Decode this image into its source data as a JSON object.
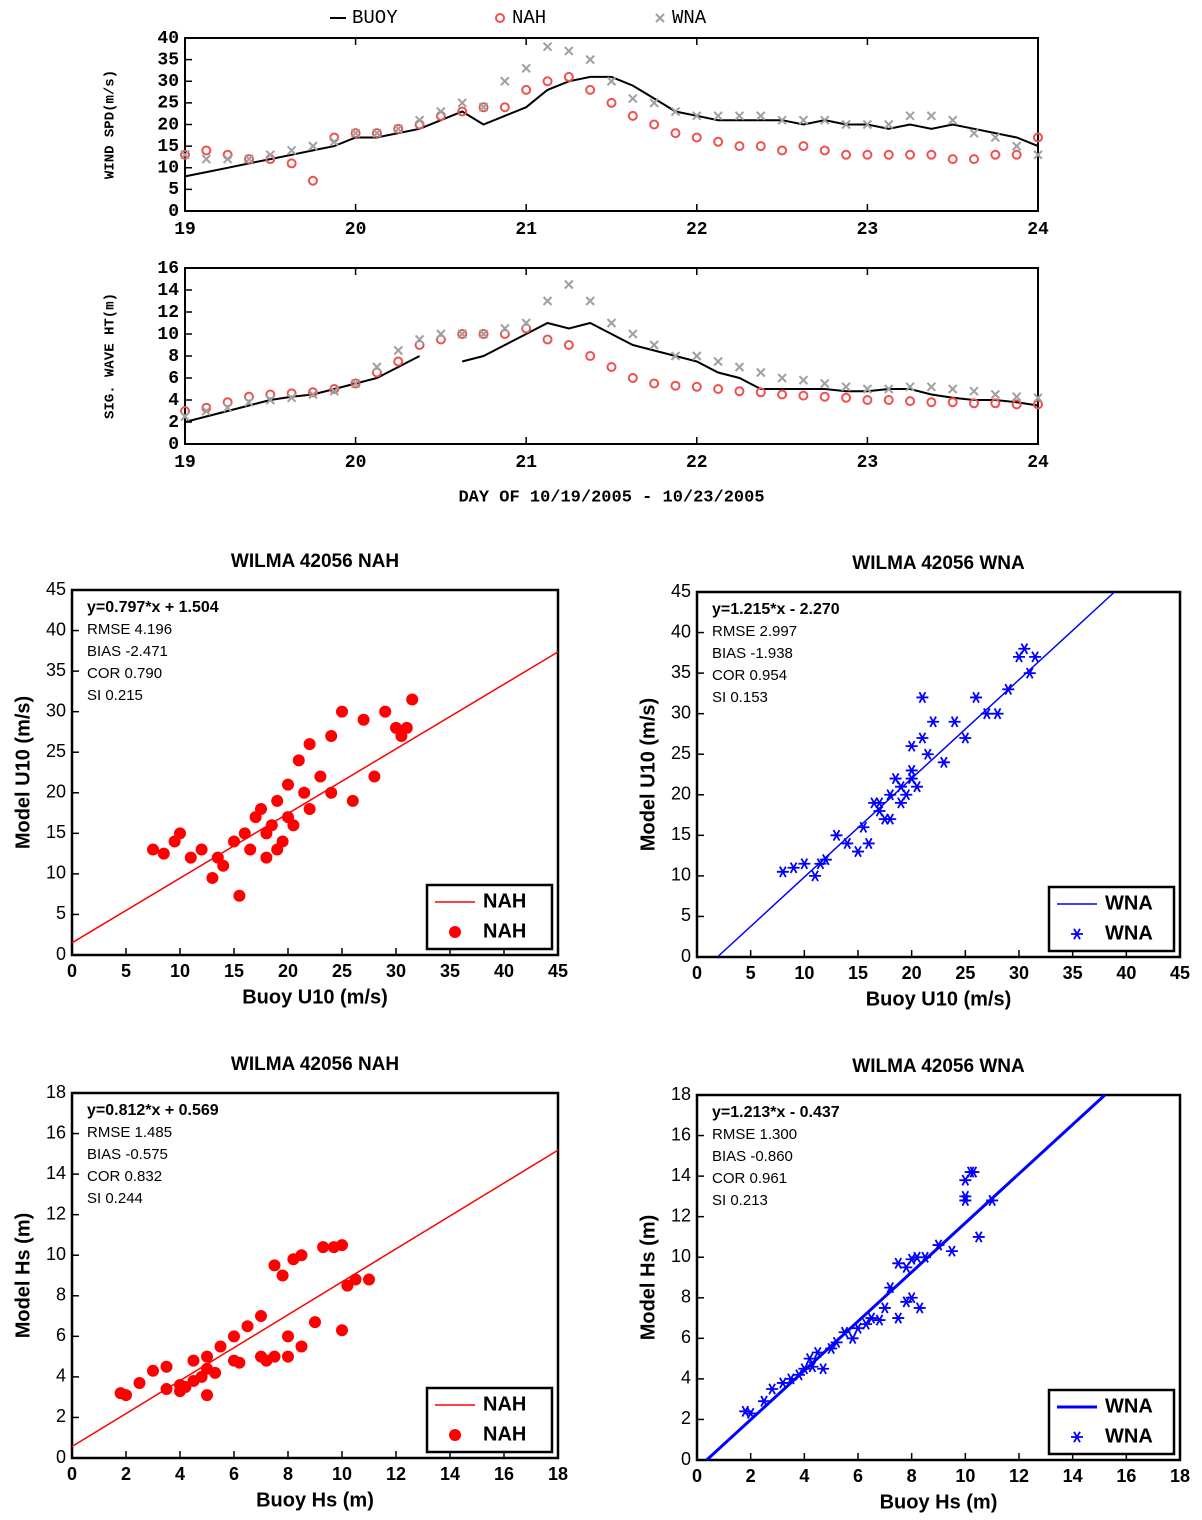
{
  "chart_data": [
    {
      "type": "line",
      "legend": "top",
      "x": [
        19,
        19.125,
        19.25,
        19.375,
        19.5,
        19.625,
        19.75,
        19.875,
        20,
        20.125,
        20.25,
        20.375,
        20.5,
        20.625,
        20.75,
        20.875,
        21,
        21.125,
        21.25,
        21.375,
        21.5,
        21.625,
        21.75,
        21.875,
        22,
        22.125,
        22.25,
        22.375,
        22.5,
        22.625,
        22.75,
        22.875,
        23,
        23.125,
        23.25,
        23.375,
        23.5,
        23.625,
        23.75,
        23.875,
        24
      ],
      "xlim": [
        19,
        24
      ],
      "xticks": [
        19,
        20,
        21,
        22,
        23,
        24
      ],
      "ylabel": "WIND SPD(m/s)",
      "ylim": [
        0,
        40
      ],
      "yticks": [
        0,
        5,
        10,
        15,
        20,
        25,
        30,
        35,
        40
      ],
      "series": [
        {
          "name": "BUOY",
          "color": "#000000",
          "line": true,
          "marker": "none",
          "values": [
            8,
            9,
            10,
            11,
            12,
            13,
            14,
            15,
            17,
            17,
            18,
            19,
            21,
            23,
            20,
            22,
            24,
            28,
            30,
            31,
            31,
            29,
            26,
            23,
            22,
            21,
            21,
            21,
            21,
            20,
            21,
            20,
            20,
            19,
            20,
            19,
            20,
            19,
            18,
            17,
            15
          ]
        },
        {
          "name": "NAH",
          "color": "#f05050",
          "line": false,
          "marker": "circle-open",
          "values": [
            13,
            14,
            13,
            12,
            12,
            11,
            7,
            17,
            18,
            18,
            19,
            20,
            22,
            23,
            24,
            24,
            28,
            30,
            31,
            28,
            25,
            22,
            20,
            18,
            17,
            16,
            15,
            15,
            14,
            15,
            14,
            13,
            13,
            13,
            13,
            13,
            12,
            12,
            13,
            13,
            17
          ]
        },
        {
          "name": "WNA",
          "color": "#a0a0a0",
          "line": false,
          "marker": "x",
          "values": [
            13,
            12,
            12,
            12,
            13,
            14,
            15,
            16,
            18,
            18,
            19,
            21,
            23,
            25,
            24,
            30,
            33,
            38,
            37,
            35,
            30,
            26,
            25,
            23,
            22,
            22,
            22,
            22,
            21,
            21,
            21,
            20,
            20,
            20,
            22,
            22,
            21,
            18,
            17,
            15,
            13
          ]
        }
      ]
    },
    {
      "type": "line",
      "legend": "none",
      "x": [
        19,
        19.125,
        19.25,
        19.375,
        19.5,
        19.625,
        19.75,
        19.875,
        20,
        20.125,
        20.25,
        20.375,
        20.5,
        20.625,
        20.75,
        20.875,
        21,
        21.125,
        21.25,
        21.375,
        21.5,
        21.625,
        21.75,
        21.875,
        22,
        22.125,
        22.25,
        22.375,
        22.5,
        22.625,
        22.75,
        22.875,
        23,
        23.125,
        23.25,
        23.375,
        23.5,
        23.625,
        23.75,
        23.875,
        24
      ],
      "xlim": [
        19,
        24
      ],
      "xticks": [
        19,
        20,
        21,
        22,
        23,
        24
      ],
      "xlabel": "DAY OF 10/19/2005 - 10/23/2005",
      "ylabel": "SIG. WAVE HT(m)",
      "ylim": [
        0,
        16
      ],
      "yticks": [
        0,
        2,
        4,
        6,
        8,
        10,
        12,
        14,
        16
      ],
      "series": [
        {
          "color": "#000000",
          "line": true,
          "marker": "none",
          "values": [
            2,
            2.5,
            3,
            3.5,
            4,
            4.3,
            4.5,
            5,
            5.5,
            6,
            7,
            8,
            null,
            7.5,
            8,
            9,
            10,
            11,
            10.5,
            11,
            10,
            9,
            8.5,
            8,
            7.5,
            6.5,
            6,
            5,
            5,
            5,
            5,
            4.8,
            4.8,
            5,
            5,
            4.5,
            4.2,
            4,
            4,
            3.8,
            3.5
          ]
        },
        {
          "color": "#f05050",
          "line": false,
          "marker": "circle-open",
          "values": [
            3,
            3.3,
            3.8,
            4.3,
            4.5,
            4.6,
            4.7,
            5,
            5.5,
            6.5,
            7.5,
            9,
            9.5,
            10,
            10,
            10,
            10.5,
            9.5,
            9,
            8,
            7,
            6,
            5.5,
            5.3,
            5.2,
            5,
            4.8,
            4.7,
            4.5,
            4.4,
            4.3,
            4.2,
            4,
            4,
            3.9,
            3.8,
            3.8,
            3.7,
            3.7,
            3.6,
            3.6
          ]
        },
        {
          "color": "#a0a0a0",
          "line": false,
          "marker": "x",
          "values": [
            2.5,
            3,
            3.3,
            3.8,
            4,
            4.2,
            4.5,
            4.8,
            5.5,
            7,
            8.5,
            9.5,
            10,
            10,
            10,
            10.5,
            11,
            13,
            14.5,
            13,
            11,
            10,
            9,
            8,
            8,
            7.5,
            7,
            6.5,
            6,
            5.8,
            5.5,
            5.2,
            5,
            5,
            5.2,
            5.2,
            5,
            4.8,
            4.5,
            4.3,
            4.2
          ]
        }
      ]
    },
    {
      "type": "scatter",
      "title": "WILMA 42056 NAH",
      "xlabel": "Buoy U10 (m/s)",
      "ylabel": "Model U10 (m/s)",
      "xlim": [
        0,
        45
      ],
      "xticks": [
        0,
        5,
        10,
        15,
        20,
        25,
        30,
        35,
        40,
        45
      ],
      "ylim": [
        0,
        45
      ],
      "yticks": [
        0,
        5,
        10,
        15,
        20,
        25,
        30,
        35,
        40,
        45
      ],
      "annotations": [
        "y=0.797*x + 1.504",
        "RMSE 4.196",
        "BIAS -2.471",
        "COR 0.790",
        "SI 0.215"
      ],
      "legend": "lower right",
      "series": [
        {
          "name": "NAH",
          "color": "#ff0000",
          "line": true,
          "marker": "none",
          "line_width": 1.5,
          "x": [
            0,
            45
          ],
          "values": [
            1.504,
            37.369
          ]
        },
        {
          "name": "NAH",
          "color": "#ff0000",
          "line": false,
          "marker": "circle",
          "x": [
            7.5,
            8.5,
            9.5,
            10,
            11,
            12,
            13,
            13.5,
            14,
            15,
            15.5,
            16,
            16.5,
            17,
            17.5,
            18,
            18.5,
            19,
            19.5,
            20,
            20.5,
            21,
            21.5,
            22,
            23,
            24,
            25,
            26,
            27,
            28,
            29,
            30,
            30.5,
            31,
            31.5,
            18,
            19,
            20,
            22,
            24
          ],
          "values": [
            13,
            12.5,
            14,
            15,
            12,
            13,
            9.5,
            12,
            11,
            14,
            7.3,
            15,
            13,
            17,
            18,
            12,
            16,
            19,
            14,
            21,
            16,
            24,
            20,
            26,
            22,
            27,
            30,
            19,
            29,
            22,
            30,
            28,
            27,
            28,
            31.5,
            15,
            13,
            17,
            18,
            20
          ]
        }
      ]
    },
    {
      "type": "scatter",
      "title": "WILMA 42056 WNA",
      "xlabel": "Buoy U10 (m/s)",
      "ylabel": "Model U10 (m/s)",
      "xlim": [
        0,
        45
      ],
      "xticks": [
        0,
        5,
        10,
        15,
        20,
        25,
        30,
        35,
        40,
        45
      ],
      "ylim": [
        0,
        45
      ],
      "yticks": [
        0,
        5,
        10,
        15,
        20,
        25,
        30,
        35,
        40,
        45
      ],
      "annotations": [
        "y=1.215*x - 2.270",
        "RMSE 2.997",
        "BIAS -1.938",
        "COR 0.954",
        "SI 0.153"
      ],
      "legend": "lower right",
      "series": [
        {
          "name": "WNA",
          "color": "#0000ff",
          "line": true,
          "marker": "none",
          "line_width": 1.5,
          "x": [
            1.9,
            38.9
          ],
          "values": [
            0,
            45
          ]
        },
        {
          "name": "WNA",
          "color": "#0000ff",
          "line": false,
          "marker": "star",
          "x": [
            8,
            9,
            10,
            11,
            11.5,
            12,
            13,
            14,
            15,
            15.5,
            16,
            16.5,
            17,
            17.5,
            18,
            18.5,
            19,
            19.5,
            20,
            20.5,
            21,
            21.5,
            22,
            23,
            24,
            25,
            26,
            27,
            28,
            29,
            30,
            30.5,
            31,
            31.5,
            19,
            20,
            21,
            17,
            18,
            20
          ],
          "values": [
            10.5,
            11,
            11.5,
            10,
            11.5,
            12,
            15,
            14,
            13,
            16,
            14,
            19,
            18,
            17,
            20,
            22,
            21,
            20,
            23,
            21,
            32,
            25,
            29,
            24,
            29,
            27,
            32,
            30,
            30,
            33,
            37,
            38,
            35,
            37,
            19,
            22,
            27,
            19,
            17,
            26
          ]
        }
      ]
    },
    {
      "type": "scatter",
      "title": "WILMA 42056 NAH",
      "xlabel": "Buoy Hs (m)",
      "ylabel": "Model Hs (m)",
      "xlim": [
        0,
        18
      ],
      "xticks": [
        0,
        2,
        4,
        6,
        8,
        10,
        12,
        14,
        16,
        18
      ],
      "ylim": [
        0,
        18
      ],
      "yticks": [
        0,
        2,
        4,
        6,
        8,
        10,
        12,
        14,
        16,
        18
      ],
      "annotations": [
        "y=0.812*x + 0.569",
        "RMSE 1.485",
        "BIAS -0.575",
        "COR 0.832",
        "SI 0.244"
      ],
      "legend": "lower right",
      "series": [
        {
          "name": "NAH",
          "color": "#ff0000",
          "line": true,
          "marker": "none",
          "line_width": 1.5,
          "x": [
            0,
            18
          ],
          "values": [
            0.569,
            15.185
          ]
        },
        {
          "name": "NAH",
          "color": "#ff0000",
          "line": false,
          "marker": "circle",
          "x": [
            1.8,
            2,
            2.5,
            3,
            3.5,
            4,
            4.2,
            4.5,
            4.8,
            5,
            5.3,
            5.5,
            6,
            6.2,
            6.5,
            7,
            7.2,
            7.5,
            7.8,
            8,
            8.2,
            8.5,
            9,
            9.3,
            9.7,
            10,
            10.2,
            10.5,
            11,
            4,
            5,
            6,
            7,
            7.5,
            8,
            8.5,
            3.5,
            4.5,
            5,
            10
          ],
          "values": [
            3.2,
            3.1,
            3.7,
            4.3,
            4.5,
            3.3,
            3.5,
            4.8,
            4,
            5,
            4.2,
            5.5,
            6,
            4.7,
            6.5,
            7,
            4.8,
            9.5,
            9,
            5,
            9.8,
            10,
            6.7,
            10.4,
            10.4,
            10.5,
            8.5,
            8.8,
            8.8,
            3.6,
            3.1,
            4.8,
            5,
            5,
            6,
            5.5,
            3.4,
            3.8,
            4.4,
            6.3
          ]
        }
      ]
    },
    {
      "type": "scatter",
      "title": "WILMA 42056 WNA",
      "xlabel": "Buoy Hs (m)",
      "ylabel": "Model Hs (m)",
      "xlim": [
        0,
        18
      ],
      "xticks": [
        0,
        2,
        4,
        6,
        8,
        10,
        12,
        14,
        16,
        18
      ],
      "ylim": [
        0,
        18
      ],
      "yticks": [
        0,
        2,
        4,
        6,
        8,
        10,
        12,
        14,
        16,
        18
      ],
      "annotations": [
        "y=1.213*x - 0.437",
        "RMSE 1.300",
        "BIAS -0.860",
        "COR 0.961",
        "SI 0.213"
      ],
      "legend": "lower right",
      "series": [
        {
          "name": "WNA",
          "color": "#0000ff",
          "line": true,
          "marker": "none",
          "line_width": 3,
          "x": [
            0.36,
            15.2
          ],
          "values": [
            0,
            18
          ]
        },
        {
          "name": "WNA",
          "color": "#0000ff",
          "line": false,
          "marker": "star",
          "x": [
            1.8,
            2,
            2.5,
            2.8,
            3.2,
            3.5,
            3.8,
            4,
            4.2,
            4.5,
            4.7,
            5,
            5.2,
            5.5,
            5.8,
            6,
            6.3,
            6.5,
            7,
            7.2,
            7.5,
            7.8,
            8,
            8.2,
            8.5,
            9,
            9.5,
            10,
            10.2,
            10.5,
            11,
            10,
            10,
            10.3,
            7.5,
            7.8,
            8,
            8.3,
            6.8,
            4.3
          ],
          "values": [
            2.4,
            2.3,
            2.9,
            3.5,
            3.8,
            4,
            4.2,
            4.5,
            5,
            5.3,
            4.5,
            5.5,
            5.8,
            6.3,
            6,
            6.5,
            6.7,
            7,
            7.5,
            8.5,
            9.7,
            9.5,
            8,
            10,
            10,
            10.6,
            10.3,
            13,
            14.2,
            11,
            12.8,
            12.8,
            13.8,
            14.2,
            7,
            7.8,
            9.9,
            7.5,
            6.9,
            4.6
          ]
        }
      ]
    }
  ]
}
